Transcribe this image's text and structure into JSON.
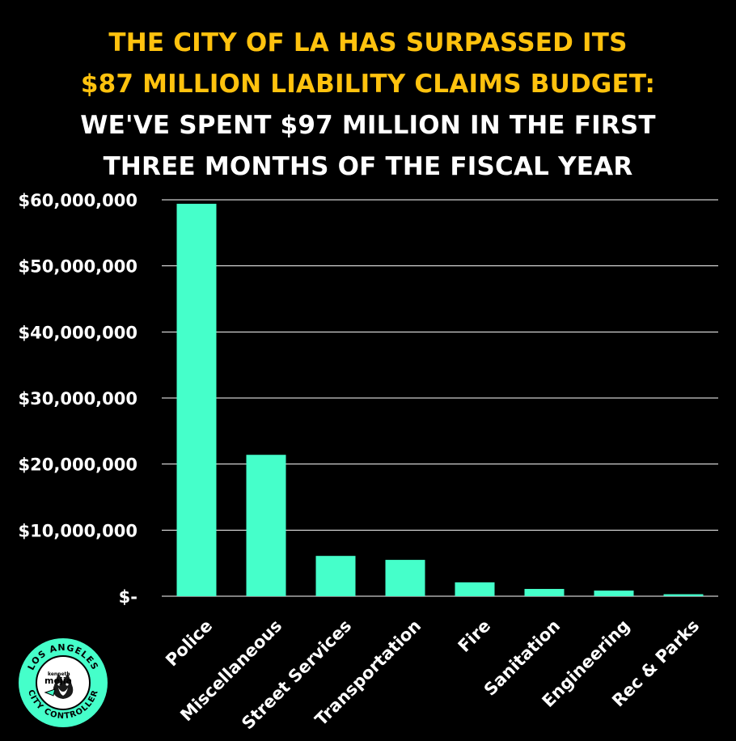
{
  "title": {
    "line1": "THE CITY OF LA HAS SURPASSED ITS",
    "line2": "$87 MILLION LIABILITY CLAIMS BUDGET:",
    "line3": "WE'VE SPENT $97 MILLION IN THE FIRST",
    "line4": "THREE MONTHS OF THE FISCAL YEAR"
  },
  "colors": {
    "background": "#000000",
    "bar": "#45FFCA",
    "title_accent": "#FFC20E",
    "text": "#FFFFFF",
    "grid": "#FFFFFF"
  },
  "logo": {
    "top_text": "LOS ANGELES",
    "bottom_text": "CITY CONTROLLER",
    "name_small": "kenneth",
    "name": "mejia",
    "icon": "corgi-dog-icon"
  },
  "chart_data": {
    "type": "bar",
    "categories": [
      "Police",
      "Miscellaneous",
      "Street Services",
      "Transportation",
      "Fire",
      "Sanitation",
      "Engineering",
      "Rec & Parks"
    ],
    "values": [
      59400000,
      21400000,
      6100000,
      5500000,
      2100000,
      1100000,
      850000,
      300000
    ],
    "ylim": [
      0,
      60000000
    ],
    "yticks": [
      0,
      10000000,
      20000000,
      30000000,
      40000000,
      50000000,
      60000000
    ],
    "ytick_labels": [
      "$-",
      "$10,000,000",
      "$20,000,000",
      "$30,000,000",
      "$40,000,000",
      "$50,000,000",
      "$60,000,000"
    ],
    "grid": true,
    "legend": "none"
  }
}
